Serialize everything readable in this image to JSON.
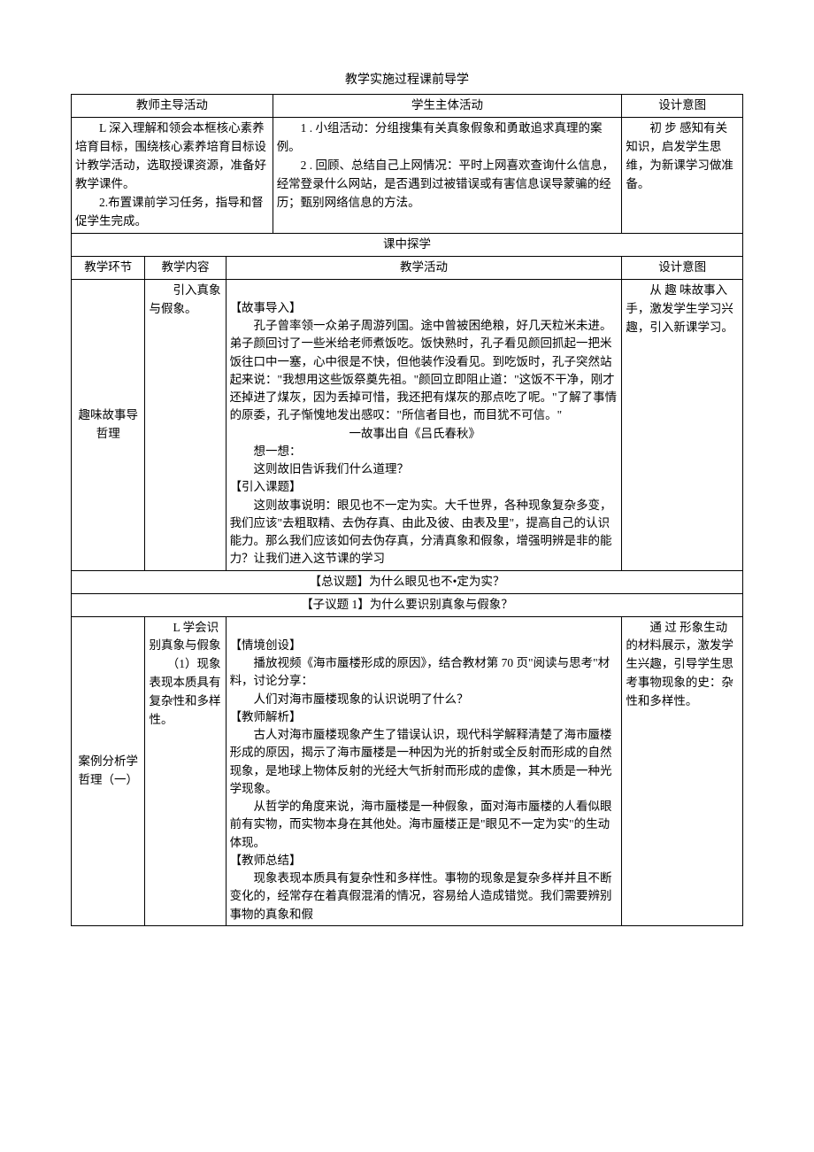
{
  "page_title": "教学实施过程课前导学",
  "table1": {
    "headers": [
      "教师主导活动",
      "学生主体活动",
      "设计意图"
    ],
    "row": {
      "teacher": "　　L 深入理解和领会本框核心素养培育目标，围绕核心素养培育目标设计教学活动，选取授课资源，准备好教学课件。\n　　2.布置课前学习任务，指导和督促学生完成。",
      "student": "　　1 . 小组活动：分组搜集有关真象假象和勇敢追求真理的案例。\n　　2 . 回顾、总结自己上网情况：平时上网喜欢查询什么信息，经常登录什么网站，是否遇到过被错误或有害信息误导蒙骗的经历；甄别网络信息的方法。",
      "intent": "　　初 步 感知有关知识，启发学生思维，为新课学习做准备。"
    }
  },
  "mid_section_title": "课中探学",
  "table2": {
    "headers": [
      "教学环节",
      "教学内容",
      "教学活动",
      "设计意图"
    ],
    "row1": {
      "stage": "趣味故事导哲理",
      "content": "　　引入真象与假象。",
      "activity": "\n【故事导入】\n　　孔子曾率领一众弟子周游列国。途中曾被困绝粮，好几天粒米未进。弟子颜回讨了一些米给老师煮饭吃。饭快熟时，孔子看见颜回抓起一把米饭往口中一塞，心中很是不快，但他装作没看见。到吃饭时，孔子突然站起来说：\"我想用这些饭祭奠先祖。\"颜回立即阻止道：\"这饭不干净，刚才还掉进了煤灰，因为丢掉可惜，我还把有煤灰的那点吃了呢。\"了解了事情的原委，孔子惭愧地发出感叹：\"所信者目也，而目犹不可信。\"\n　　　　　　　　　　一故事出自《吕氏春秋》\n　　想一想：\n　　这则故旧告诉我们什么道理？\n【引入课题】\n　　这则故事说明：眼见也不一定为实。大千世界，各种现象复杂多变，我们应该\"去粗取精、去伪存真、由此及彼、由表及里\"，提高自己的认识能力。那么我们应该如何去伪存真，分清真象和假象，增强明辨是非的能力？让我们进入这节课的学习",
      "intent": "　　从 趣 味故事入手，激发学生学习兴趣，引入新课学习。"
    },
    "zongyiti": "【总议题】为什么眼见也不•定为实？",
    "ziyiti1": "【子议题 1】为什么要识别真象与假象？",
    "row2": {
      "stage": "案例分析学哲理（一）",
      "content": "　　L 学会识别真象与假象\n　　（1）现象表现本质具有复杂性和多样性。",
      "activity": "\n【情境创设】\n　　播放视频《海市蜃楼形成的原因》，结合教材第 70 页\"阅读与思考\"材料，讨论分享：\n　　人们对海市蜃楼现象的认识说明了什么？\n【教师解析】\n　　古人对海市蜃楼现象产生了错误认识，现代科学解释清楚了海市蜃楼形成的原因，揭示了海市蜃楼是一种因为光的折射或全反射而形成的自然现象，是地球上物体反射的光经大气折射而形成的虚像，其木质是一种光学现象。\n　　从哲学的角度来说，海市蜃楼是一种假象，面对海市蜃楼的人看似眼前有实物，而实物本身在其他处。海市蜃楼正是\"眼见不一定为实\"的生动体现。\n【教师总结】\n　　现象表现本质具有复杂性和多样性。事物的现象是复杂多样并且不断变化的，经常存在着真假混淆的情况，容易给人造成错觉。我们需要辨别事物的真象和假",
      "intent": "　　通 过 形象生动的材料展示，激发学生兴趣，引导学生思考事物现象的史：杂性和多样性。"
    }
  }
}
